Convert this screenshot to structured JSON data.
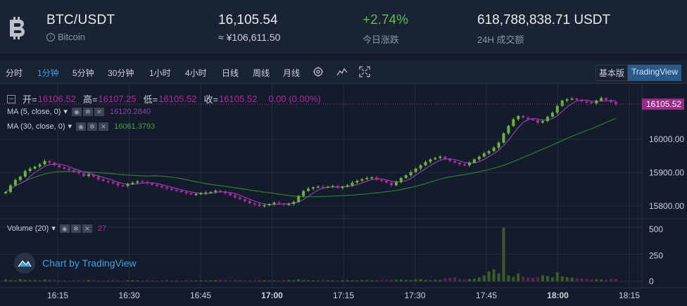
{
  "header": {
    "pair": "BTC/USDT",
    "coin_name": "Bitcoin",
    "price": "16,105.54",
    "price_cny": "≈ ¥106,611.50",
    "change": "+2.74%",
    "change_label": "今日涨跌",
    "volume": "618,788,838.71 USDT",
    "volume_label": "24H 成交额",
    "logo_icon": "bitcoin-icon"
  },
  "toolbar": {
    "timeframes": [
      "分时",
      "1分钟",
      "5分钟",
      "30分钟",
      "1小时",
      "4小时",
      "日线",
      "周线",
      "月线"
    ],
    "active_timeframe": "1分钟",
    "icons": [
      "settings-icon",
      "indicators-icon",
      "fullscreen-icon"
    ],
    "views": [
      "基本版",
      "TradingView"
    ],
    "active_view": "TradingView"
  },
  "legend": {
    "open_label": "开=",
    "open": "16106.52",
    "high_label": "高=",
    "high": "16107.25",
    "low_label": "低=",
    "low": "16105.52",
    "close_label": "收=",
    "close": "16105.52",
    "change": "0.00 (0.00%)",
    "ma5_label": "MA (5, close, 0)",
    "ma5_value": "16120.2840",
    "ma30_label": "MA (30, close, 0)",
    "ma30_value": "16061.3793",
    "volume_label": "Volume (20)",
    "volume_value": "27"
  },
  "branding": "Chart by TradingView",
  "colors": {
    "up": "#6ab33f",
    "down": "#ac2a9f",
    "ma5": "#8e3fb0",
    "ma30": "#2e7d32",
    "accent": "#3ca0e6",
    "price_tag": "#9b2a8a"
  },
  "chart_data": {
    "type": "candlestick",
    "last_price_label": "16105.52",
    "x_ticks": [
      "16:15",
      "16:30",
      "16:45",
      "17:00",
      "17:15",
      "17:30",
      "17:45",
      "18:00",
      "18:15"
    ],
    "y_ticks": [
      16000,
      15900,
      15800
    ],
    "y_ticks_labels": [
      "16000.00",
      "15900.00",
      "15800.00"
    ],
    "volume_ticks": [
      "500",
      "250",
      "0"
    ],
    "ylim": [
      15770,
      16150
    ],
    "volume_ylim": [
      0,
      600
    ],
    "closes": [
      15842,
      15862,
      15878,
      15888,
      15905,
      15912,
      15918,
      15925,
      15935,
      15930,
      15922,
      15916,
      15912,
      15908,
      15902,
      15898,
      15890,
      15895,
      15888,
      15880,
      15875,
      15872,
      15868,
      15862,
      15860,
      15866,
      15870,
      15874,
      15872,
      15868,
      15864,
      15860,
      15856,
      15852,
      15848,
      15846,
      15842,
      15838,
      15835,
      15836,
      15838,
      15840,
      15842,
      15846,
      15844,
      15838,
      15832,
      15826,
      15820,
      15815,
      15808,
      15805,
      15800,
      15802,
      15806,
      15810,
      15808,
      15804,
      15806,
      15812,
      15830,
      15845,
      15852,
      15856,
      15858,
      15856,
      15858,
      15860,
      15854,
      15858,
      15862,
      15870,
      15876,
      15880,
      15884,
      15886,
      15878,
      15876,
      15870,
      15862,
      15872,
      15884,
      15892,
      15902,
      15912,
      15922,
      15932,
      15940,
      15944,
      15948,
      15940,
      15935,
      15930,
      15925,
      15922,
      15930,
      15940,
      15948,
      15958,
      15965,
      15975,
      15990,
      16018,
      16040,
      16060,
      16070,
      16065,
      16060,
      16058,
      16050,
      16055,
      16068,
      16080,
      16100,
      16116,
      16120,
      16122,
      16118,
      16114,
      16112,
      16108,
      16116,
      16124,
      16118,
      16112,
      16106
    ],
    "volumes": [
      18,
      12,
      10,
      22,
      15,
      14,
      12,
      10,
      16,
      14,
      12,
      10,
      9,
      8,
      11,
      12,
      10,
      14,
      12,
      9,
      8,
      10,
      12,
      9,
      8,
      10,
      11,
      9,
      8,
      12,
      10,
      9,
      8,
      14,
      10,
      9,
      8,
      11,
      12,
      10,
      9,
      8,
      10,
      12,
      15,
      10,
      9,
      14,
      12,
      10,
      9,
      8,
      12,
      10,
      8,
      9,
      10,
      12,
      14,
      11,
      20,
      12,
      10,
      9,
      8,
      12,
      10,
      9,
      8,
      11,
      12,
      10,
      9,
      14,
      12,
      10,
      11,
      13,
      14,
      12,
      16,
      18,
      14,
      12,
      20,
      22,
      14,
      12,
      18,
      16,
      30,
      36,
      40,
      22,
      18,
      24,
      28,
      40,
      60,
      100,
      120,
      80,
      540,
      60,
      45,
      80,
      48,
      40,
      35,
      44,
      60,
      55,
      40,
      90,
      50,
      42,
      38,
      30,
      28,
      24,
      20,
      22,
      18,
      16,
      27,
      27
    ],
    "ma5": "smoothed close",
    "ma30": "smoothed close",
    "grid": true
  }
}
